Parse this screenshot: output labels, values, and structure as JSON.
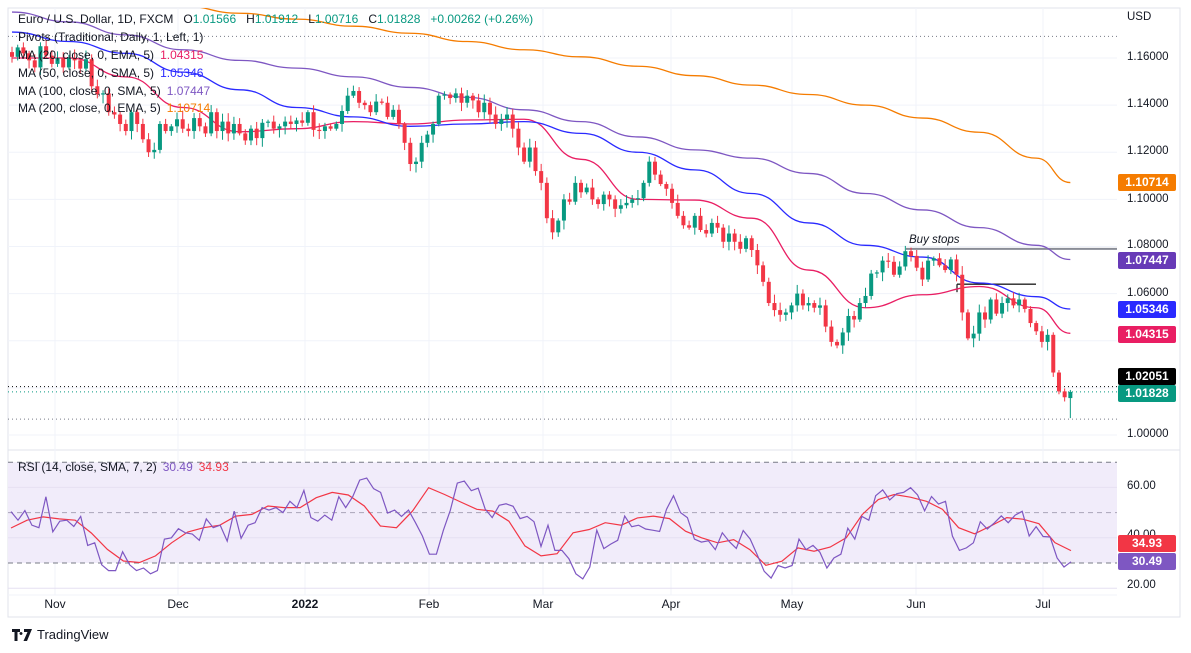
{
  "header": {
    "symbol": "Euro / U.S. Dollar, 1D, FXCM",
    "open_label": "O",
    "open": "1.01566",
    "high_label": "H",
    "high": "1.01912",
    "low_label": "L",
    "low": "1.00716",
    "close_label": "C",
    "close": "1.01828",
    "change": "+0.00262 (+0.26%)"
  },
  "indicators": [
    {
      "label": "Pivots (Traditional, Daily, 1, Left, 1)",
      "value": ""
    },
    {
      "label": "MA (20, close, 0, EMA, 5)",
      "value": "1.04315",
      "color": "#e91e63"
    },
    {
      "label": "MA (50, close, 0, SMA, 5)",
      "value": "1.05346",
      "color": "#2a2aff"
    },
    {
      "label": "MA (100, close, 0, SMA, 5)",
      "value": "1.07447",
      "color": "#7e57c2"
    },
    {
      "label": "MA (200, close, 0, EMA, 5)",
      "value": "1.10714",
      "color": "#f57c00"
    }
  ],
  "rsi_legend": {
    "label": "RSI (14, close, SMA, 7, 2)",
    "rsi": "30.49",
    "ma": "34.93"
  },
  "price_axis": {
    "currency": "USD",
    "ticks": [
      "1.16000",
      "1.14000",
      "1.12000",
      "1.10000",
      "1.08000",
      "1.06000",
      "1.04000",
      "1.00000"
    ]
  },
  "rsi_axis": {
    "ticks": [
      "60.00",
      "40.00",
      "20.00"
    ]
  },
  "badges": [
    {
      "value": "1.10714",
      "color": "#f57c00"
    },
    {
      "value": "1.07447",
      "color": "#673ab7"
    },
    {
      "value": "1.05346",
      "color": "#2a2aff"
    },
    {
      "value": "1.04315",
      "color": "#e91e63"
    },
    {
      "value": "1.02051",
      "color": "#000000"
    },
    {
      "value": "1.01828",
      "color": "#089981"
    },
    {
      "value": "34.93",
      "color": "#f23645"
    },
    {
      "value": "30.49",
      "color": "#7e57c2"
    }
  ],
  "time_axis": [
    "Nov",
    "Dec",
    "2022",
    "Feb",
    "Mar",
    "Apr",
    "May",
    "Jun",
    "Jul"
  ],
  "annotations": {
    "buy_stops": "Buy stops"
  },
  "branding": "TradingView",
  "colors": {
    "up": "#089981",
    "down": "#f23645",
    "rsi": "#7e57c2",
    "rsi_ma": "#f23645",
    "rsi_band": "#f1ecfa"
  },
  "chart_data": {
    "type": "candlestick",
    "title": "Euro / U.S. Dollar, 1D, FXCM",
    "ylim": [
      0.99,
      1.18
    ],
    "last_bar": {
      "open": 1.01566,
      "high": 1.01912,
      "low": 1.00716,
      "close": 1.01828
    },
    "closes": [
      1.1605,
      1.1645,
      1.162,
      1.159,
      1.156,
      1.165,
      1.161,
      1.1575,
      1.16,
      1.156,
      1.16,
      1.159,
      1.1555,
      1.1595,
      1.148,
      1.1445,
      1.145,
      1.137,
      1.136,
      1.132,
      1.129,
      1.137,
      1.132,
      1.1255,
      1.12,
      1.121,
      1.132,
      1.129,
      1.131,
      1.134,
      1.13,
      1.129,
      1.1345,
      1.131,
      1.128,
      1.137,
      1.129,
      1.133,
      1.128,
      1.132,
      1.128,
      1.125,
      1.13,
      1.126,
      1.1325,
      1.133,
      1.13,
      1.131,
      1.133,
      1.132,
      1.1335,
      1.1325,
      1.137,
      1.1295,
      1.129,
      1.131,
      1.13,
      1.132,
      1.1375,
      1.144,
      1.146,
      1.141,
      1.14,
      1.137,
      1.1415,
      1.141,
      1.135,
      1.138,
      1.132,
      1.124,
      1.115,
      1.116,
      1.124,
      1.1275,
      1.132,
      1.144,
      1.1445,
      1.143,
      1.145,
      1.141,
      1.144,
      1.142,
      1.137,
      1.141,
      1.136,
      1.132,
      1.134,
      1.136,
      1.13,
      1.122,
      1.116,
      1.122,
      1.112,
      1.107,
      1.092,
      1.086,
      1.091,
      1.1,
      1.099,
      1.107,
      1.103,
      1.105,
      1.1,
      1.098,
      1.102,
      1.1,
      1.096,
      1.0975,
      1.0985,
      1.1,
      1.1005,
      1.107,
      1.116,
      1.1105,
      1.1065,
      1.1045,
      1.0985,
      1.093,
      1.089,
      1.088,
      1.093,
      1.087,
      1.0855,
      1.09,
      1.088,
      1.082,
      1.0855,
      1.082,
      1.079,
      1.0835,
      1.0785,
      1.072,
      1.065,
      1.056,
      1.053,
      1.051,
      1.052,
      1.055,
      1.06,
      1.055,
      1.056,
      1.054,
      1.055,
      1.046,
      1.0395,
      1.038,
      1.0435,
      1.0505,
      1.049,
      1.056,
      1.059,
      1.0685,
      1.069,
      1.074,
      1.0735,
      1.068,
      1.0715,
      1.078,
      1.076,
      1.071,
      1.066,
      1.074,
      1.075,
      1.072,
      1.07,
      1.0745,
      1.068,
      1.052,
      1.041,
      1.043,
      1.052,
      1.049,
      1.0575,
      1.0515,
      1.056,
      1.058,
      1.055,
      1.0575,
      1.0535,
      1.0475,
      1.044,
      1.0395,
      1.0425,
      1.0265,
      1.0185,
      1.016,
      1.01828
    ],
    "moving_averages": {
      "ma20_ema": [
        1.16,
        1.16,
        1.152,
        1.139,
        1.1287,
        1.13,
        1.133,
        1.132,
        1.1337,
        1.134,
        1.117,
        1.1,
        1.0997,
        1.092,
        1.07,
        1.054,
        1.0595,
        1.063,
        1.054,
        1.04315
      ],
      "ma50_sma": [
        1.171,
        1.167,
        1.162,
        1.154,
        1.1465,
        1.139,
        1.135,
        1.131,
        1.132,
        1.133,
        1.128,
        1.12,
        1.1125,
        1.1025,
        1.09,
        1.0805,
        1.0755,
        1.0645,
        1.0587,
        1.05346
      ],
      "ma100_sma": [
        1.1795,
        1.1753,
        1.1698,
        1.1635,
        1.159,
        1.1557,
        1.152,
        1.1475,
        1.1433,
        1.138,
        1.133,
        1.1265,
        1.121,
        1.1175,
        1.111,
        1.1025,
        1.0955,
        1.088,
        1.0805,
        1.07447
      ],
      "ma200_ema": [
        1.189,
        1.187,
        1.1845,
        1.182,
        1.179,
        1.1765,
        1.1735,
        1.1705,
        1.167,
        1.1635,
        1.1605,
        1.1565,
        1.1525,
        1.1485,
        1.1445,
        1.14,
        1.1345,
        1.1285,
        1.1175,
        1.10714
      ]
    },
    "levels": {
      "pivot_top": 1.1692,
      "buy_stops": 1.079,
      "resistance": 1.064,
      "prev_close": 1.02051,
      "last": 1.01828,
      "pivot_low": 1.0067
    },
    "rsi": {
      "ylim": [
        15,
        75
      ],
      "upper": 70,
      "middle": 50,
      "lower": 30,
      "values": [
        50.4,
        47,
        50.8,
        45,
        44,
        56.3,
        42.4,
        46.6,
        47,
        44.5,
        48.5,
        37,
        38,
        29.3,
        27,
        27,
        34.5,
        29.3,
        27,
        28,
        25.7,
        27,
        39.5,
        40,
        43.6,
        42,
        41.5,
        39,
        47.5,
        44,
        45,
        38.7,
        50.6,
        39.8,
        45,
        46,
        52,
        51,
        52,
        50,
        54.5,
        52,
        58.8,
        48,
        46.6,
        49,
        47,
        56.3,
        52,
        56.3,
        62.9,
        63.7,
        59.5,
        58,
        49.8,
        51,
        48.5,
        51,
        46,
        40.7,
        33.5,
        33.5,
        43,
        50.9,
        61.7,
        62.5,
        58.7,
        59.7,
        51.4,
        48,
        52.9,
        53.5,
        52.5,
        47.6,
        48.5,
        46.4,
        36.6,
        45,
        35,
        35,
        31.7,
        25.7,
        23.7,
        28.4,
        43,
        35.7,
        37.5,
        39,
        48.6,
        44.4,
        45,
        43.5,
        43,
        42.5,
        51.3,
        56.7,
        50,
        48,
        39.5,
        38.3,
        38.8,
        35.3,
        42,
        38.5,
        35.8,
        42.9,
        39.5,
        33.3,
        26.7,
        24,
        29,
        28,
        29,
        39.5,
        35.3,
        37,
        34.3,
        28,
        32,
        33.5,
        43.8,
        39.5,
        48.5,
        47,
        56.7,
        59,
        55,
        57.5,
        58,
        59.9,
        57,
        50.7,
        56.4,
        53.4,
        54.5,
        40.7,
        35,
        36,
        38,
        46.4,
        43.5,
        45.9,
        48.7,
        46,
        49,
        50.5,
        40.7,
        44.4,
        40.5,
        40.3,
        32,
        28.4,
        30.49
      ],
      "ma_values": [
        43.9,
        47,
        48.3,
        47.5,
        47,
        41.9,
        35.4,
        30.8,
        30.2,
        32.8,
        38,
        42.3,
        44,
        45,
        48.6,
        49.3,
        52.6,
        52,
        52,
        55.9,
        58,
        57,
        52.6,
        44.7,
        44,
        50.6,
        59.9,
        57.2,
        54.2,
        51.3,
        50.6,
        46.6,
        36.8,
        32.8,
        33.7,
        42,
        43.3,
        46,
        45,
        47.9,
        48.6,
        47.6,
        42.6,
        40,
        38,
        39.3,
        35.3,
        29.1,
        30.7,
        36,
        34.7,
        36.3,
        40,
        49.2,
        55.2,
        57.2,
        56.1,
        54.5,
        51.3,
        44,
        41.6,
        44.7,
        48,
        47.4,
        45.6,
        38.1,
        34.93
      ]
    },
    "grid": true
  }
}
